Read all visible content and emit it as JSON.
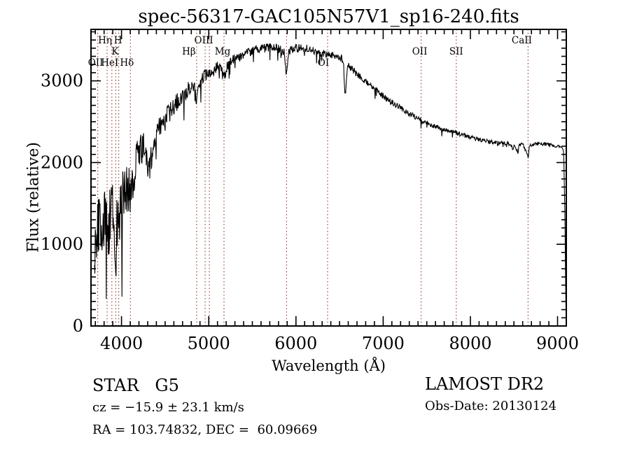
{
  "chart_data": {
    "type": "line",
    "title": "spec-56317-GAC105N57V1_sp16-240.fits",
    "xlabel": "Wavelength (Å)",
    "ylabel": "Flux (relative)",
    "x_range": [
      3650,
      9100
    ],
    "y_range": [
      0,
      3630
    ],
    "x_ticks": [
      4000,
      5000,
      6000,
      7000,
      8000,
      9000
    ],
    "y_ticks": [
      0,
      1000,
      2000,
      3000
    ],
    "x_minor_step": 100,
    "y_minor_step": 100,
    "grid": false,
    "legend": "none",
    "noise_seed": 1234567,
    "colors": {
      "spectrum": "#000000",
      "marker_line": "#9e4b45",
      "frame": "#000000",
      "background": "#ffffff"
    },
    "line_markers": [
      {
        "label": "OII",
        "wavelength": 3727,
        "row": 3,
        "dx": -3
      },
      {
        "label": "Hη",
        "wavelength": 3835,
        "row": 1,
        "dx": -3
      },
      {
        "label": "HeI",
        "wavelength": 3889,
        "row": 3,
        "dx": -3
      },
      {
        "label": "K",
        "wavelength": 3934,
        "row": 2,
        "dx": -1
      },
      {
        "label": "H",
        "wavelength": 3968,
        "row": 1,
        "dx": -1
      },
      {
        "label": "Hδ",
        "wavelength": 4102,
        "row": 3,
        "dx": -5
      },
      {
        "label": "Hβ",
        "wavelength": 4861,
        "row": 2,
        "dx": -11
      },
      {
        "label": "OIII",
        "wavelength": 4959,
        "row": 1,
        "dx": -5,
        "label_wavelength": 4983
      },
      {
        "label": "",
        "wavelength": 5007
      },
      {
        "label": "Mg",
        "wavelength": 5175,
        "row": 2,
        "dx": -2
      },
      {
        "label": "",
        "wavelength": 5893
      },
      {
        "label": "OI",
        "wavelength": 6363,
        "row": 3,
        "dx": -6
      },
      {
        "label": "OII",
        "wavelength": 7435,
        "row": 2,
        "dx": -2
      },
      {
        "label": "SII",
        "wavelength": 7838,
        "row": 2,
        "dx": 0
      },
      {
        "label": "CaII",
        "wavelength": 8662,
        "row": 1,
        "dx": -9
      }
    ],
    "continuum_points": [
      [
        3690,
        600
      ],
      [
        3700,
        900
      ],
      [
        3730,
        1150
      ],
      [
        3760,
        1300
      ],
      [
        3800,
        1300
      ],
      [
        3850,
        1250
      ],
      [
        3900,
        1400
      ],
      [
        3928,
        1100
      ],
      [
        3934,
        650
      ],
      [
        3940,
        1100
      ],
      [
        3960,
        1300
      ],
      [
        3968,
        800
      ],
      [
        3976,
        1300
      ],
      [
        4000,
        1550
      ],
      [
        4050,
        1700
      ],
      [
        4094,
        1650
      ],
      [
        4102,
        1430
      ],
      [
        4112,
        1650
      ],
      [
        4150,
        1900
      ],
      [
        4200,
        2150
      ],
      [
        4250,
        2200
      ],
      [
        4290,
        2000
      ],
      [
        4320,
        1950
      ],
      [
        4345,
        2060
      ],
      [
        4390,
        2260
      ],
      [
        4450,
        2450
      ],
      [
        4550,
        2600
      ],
      [
        4650,
        2760
      ],
      [
        4750,
        2880
      ],
      [
        4830,
        2950
      ],
      [
        4861,
        2760
      ],
      [
        4885,
        2990
      ],
      [
        4950,
        3060
      ],
      [
        5050,
        3130
      ],
      [
        5120,
        3180
      ],
      [
        5167,
        3050
      ],
      [
        5190,
        3090
      ],
      [
        5230,
        3230
      ],
      [
        5300,
        3270
      ],
      [
        5400,
        3320
      ],
      [
        5500,
        3360
      ],
      [
        5600,
        3390
      ],
      [
        5700,
        3410
      ],
      [
        5800,
        3390
      ],
      [
        5868,
        3360
      ],
      [
        5893,
        3060
      ],
      [
        5918,
        3360
      ],
      [
        6000,
        3400
      ],
      [
        6100,
        3400
      ],
      [
        6200,
        3370
      ],
      [
        6280,
        3340
      ],
      [
        6360,
        3320
      ],
      [
        6440,
        3310
      ],
      [
        6520,
        3280
      ],
      [
        6545,
        3250
      ],
      [
        6563,
        2780
      ],
      [
        6590,
        3200
      ],
      [
        6650,
        3130
      ],
      [
        6750,
        3040
      ],
      [
        6850,
        2950
      ],
      [
        6950,
        2860
      ],
      [
        7050,
        2770
      ],
      [
        7150,
        2700
      ],
      [
        7250,
        2630
      ],
      [
        7350,
        2570
      ],
      [
        7450,
        2510
      ],
      [
        7550,
        2460
      ],
      [
        7650,
        2420
      ],
      [
        7750,
        2390
      ],
      [
        7850,
        2355
      ],
      [
        7950,
        2325
      ],
      [
        8050,
        2295
      ],
      [
        8150,
        2270
      ],
      [
        8250,
        2250
      ],
      [
        8350,
        2240
      ],
      [
        8450,
        2230
      ],
      [
        8492,
        2160
      ],
      [
        8500,
        2220
      ],
      [
        8536,
        2150
      ],
      [
        8546,
        2100
      ],
      [
        8556,
        2210
      ],
      [
        8600,
        2230
      ],
      [
        8656,
        2090
      ],
      [
        8666,
        2060
      ],
      [
        8676,
        2210
      ],
      [
        8750,
        2230
      ],
      [
        8850,
        2225
      ],
      [
        8950,
        2210
      ],
      [
        9040,
        2190
      ],
      [
        9070,
        2150
      ],
      [
        9085,
        1300
      ],
      [
        9093,
        400
      ],
      [
        9100,
        25
      ]
    ],
    "noise_profile": [
      [
        3690,
        900
      ],
      [
        3800,
        850
      ],
      [
        3900,
        800
      ],
      [
        4000,
        700
      ],
      [
        4100,
        560
      ],
      [
        4200,
        440
      ],
      [
        4300,
        390
      ],
      [
        4450,
        300
      ],
      [
        4600,
        230
      ],
      [
        4800,
        175
      ],
      [
        5000,
        150
      ],
      [
        5300,
        125
      ],
      [
        5700,
        110
      ],
      [
        6100,
        100
      ],
      [
        6500,
        90
      ],
      [
        6900,
        78
      ],
      [
        7300,
        66
      ],
      [
        7700,
        56
      ],
      [
        8100,
        50
      ],
      [
        8500,
        45
      ],
      [
        8900,
        40
      ],
      [
        9050,
        32
      ],
      [
        9100,
        8
      ]
    ]
  },
  "annotations": {
    "class_line": "STAR   G5",
    "survey": "LAMOST DR2",
    "cz_line": "cz = −15.9 ± 23.1 km/s",
    "obs_date_line": "Obs-Date: 20130124",
    "radec_line": "RA = 103.74832, DEC =  60.09669"
  }
}
